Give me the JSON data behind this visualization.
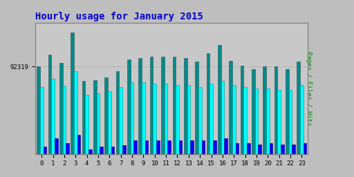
{
  "title": "Hourly usage for January 2015",
  "ylabel_right": "Pages / Files / Hits",
  "ytick_label": "92319",
  "hours": [
    0,
    1,
    2,
    3,
    4,
    5,
    6,
    7,
    8,
    9,
    10,
    11,
    12,
    13,
    14,
    15,
    16,
    17,
    18,
    19,
    20,
    21,
    22,
    23
  ],
  "hits": [
    0.72,
    0.82,
    0.75,
    1.0,
    0.6,
    0.61,
    0.63,
    0.68,
    0.78,
    0.79,
    0.8,
    0.8,
    0.8,
    0.79,
    0.76,
    0.83,
    0.9,
    0.77,
    0.73,
    0.7,
    0.72,
    0.72,
    0.7,
    0.76
  ],
  "files": [
    0.55,
    0.62,
    0.56,
    0.68,
    0.49,
    0.5,
    0.52,
    0.55,
    0.59,
    0.59,
    0.58,
    0.58,
    0.57,
    0.57,
    0.55,
    0.58,
    0.6,
    0.57,
    0.55,
    0.54,
    0.54,
    0.53,
    0.53,
    0.57
  ],
  "pages": [
    0.06,
    0.13,
    0.09,
    0.16,
    0.04,
    0.06,
    0.06,
    0.07,
    0.11,
    0.11,
    0.11,
    0.11,
    0.11,
    0.11,
    0.11,
    0.11,
    0.13,
    0.09,
    0.09,
    0.08,
    0.09,
    0.08,
    0.08,
    0.09
  ],
  "color_hits": "#008B8B",
  "color_files": "#00FFFF",
  "color_pages": "#0000FF",
  "bg_plot": "#BEBEBE",
  "bg_inner": "#C8C8C8",
  "title_color": "#0000CC",
  "ylabel_color": "#008000",
  "border_color": "#808080",
  "grid_color": "#AAAAAA"
}
